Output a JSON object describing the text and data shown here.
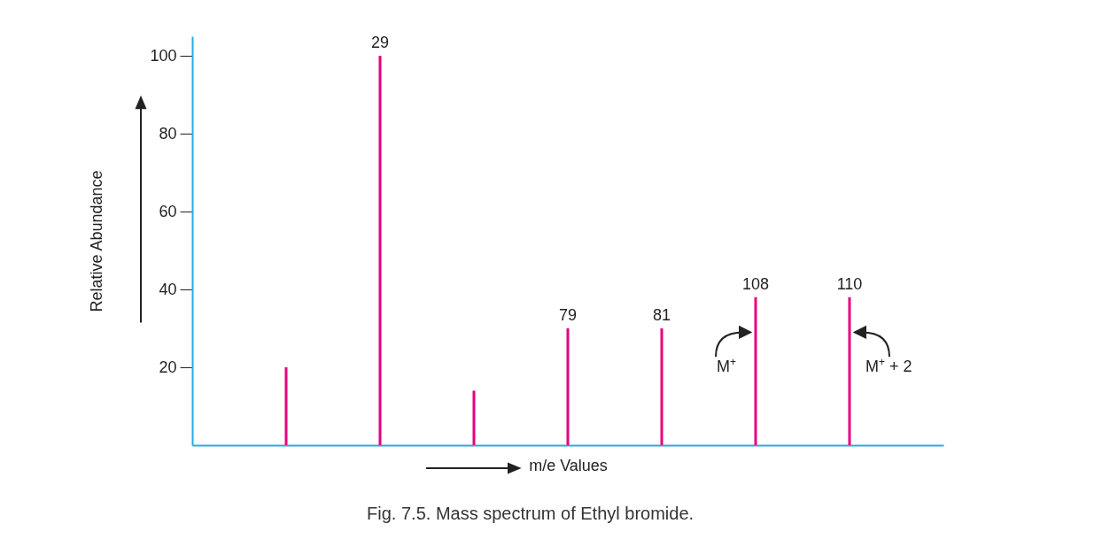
{
  "chart_data": {
    "type": "bar",
    "xlabel": "m/e Values",
    "ylabel": "Relative Abundance",
    "categories": [
      null,
      "29",
      null,
      "79",
      "81",
      "108",
      "110"
    ],
    "values": [
      20,
      100,
      14,
      30,
      30,
      38,
      38
    ],
    "color": "#e6007e",
    "ylim": [
      0,
      105
    ],
    "yticks": [
      20,
      40,
      60,
      80,
      100
    ],
    "annotations": [
      {
        "text": "M$^{+}$",
        "x": "108",
        "y": 20
      },
      {
        "text": "M$^{+}$ + 2",
        "x": "110",
        "y": 20
      },
      "Fig. 7.5. Mass spectrum of Ethyl bromide."
    ]
  }
}
